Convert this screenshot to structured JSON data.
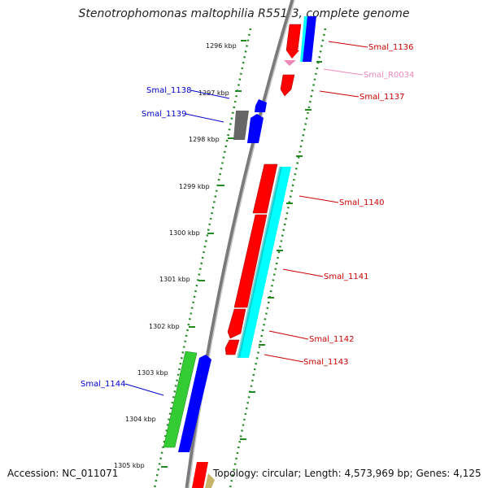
{
  "title": "Stenotrophomonas maltophilia R551-3, complete genome",
  "footer": {
    "accession": "Accession: NC_011071",
    "topology": "Topology: circular; Length: 4,573,969 bp; Genes: 4,125"
  },
  "scale_labels": [
    "1296 kbp",
    "1297 kbp",
    "1298 kbp",
    "1299 kbp",
    "1300 kbp",
    "1301 kbp",
    "1302 kbp",
    "1303 kbp",
    "1304 kbp",
    "1305 kbp"
  ],
  "genes": [
    {
      "name": "Smal_1136",
      "color": "#cc0000"
    },
    {
      "name": "Smal_R0034",
      "color": "#ee88bb"
    },
    {
      "name": "Smal_1137",
      "color": "#cc0000"
    },
    {
      "name": "Smal_1138",
      "color": "#0000cc"
    },
    {
      "name": "Smal_1139",
      "color": "#0000cc"
    },
    {
      "name": "Smal_1140",
      "color": "#cc0000"
    },
    {
      "name": "Smal_1141",
      "color": "#cc0000"
    },
    {
      "name": "Smal_1142",
      "color": "#cc0000"
    },
    {
      "name": "Smal_1143",
      "color": "#cc0000"
    },
    {
      "name": "Smal_1144",
      "color": "#0000cc"
    }
  ],
  "colors": {
    "cds_forward": "#ff0000",
    "cds_reverse": "#0000ff",
    "cds_other": "#33cc33",
    "gc_skew": "#00ffff",
    "pseudo": "#666666",
    "rna": "#ee88bb",
    "backbone": "#7a7a7a",
    "ticks": "#228822"
  }
}
